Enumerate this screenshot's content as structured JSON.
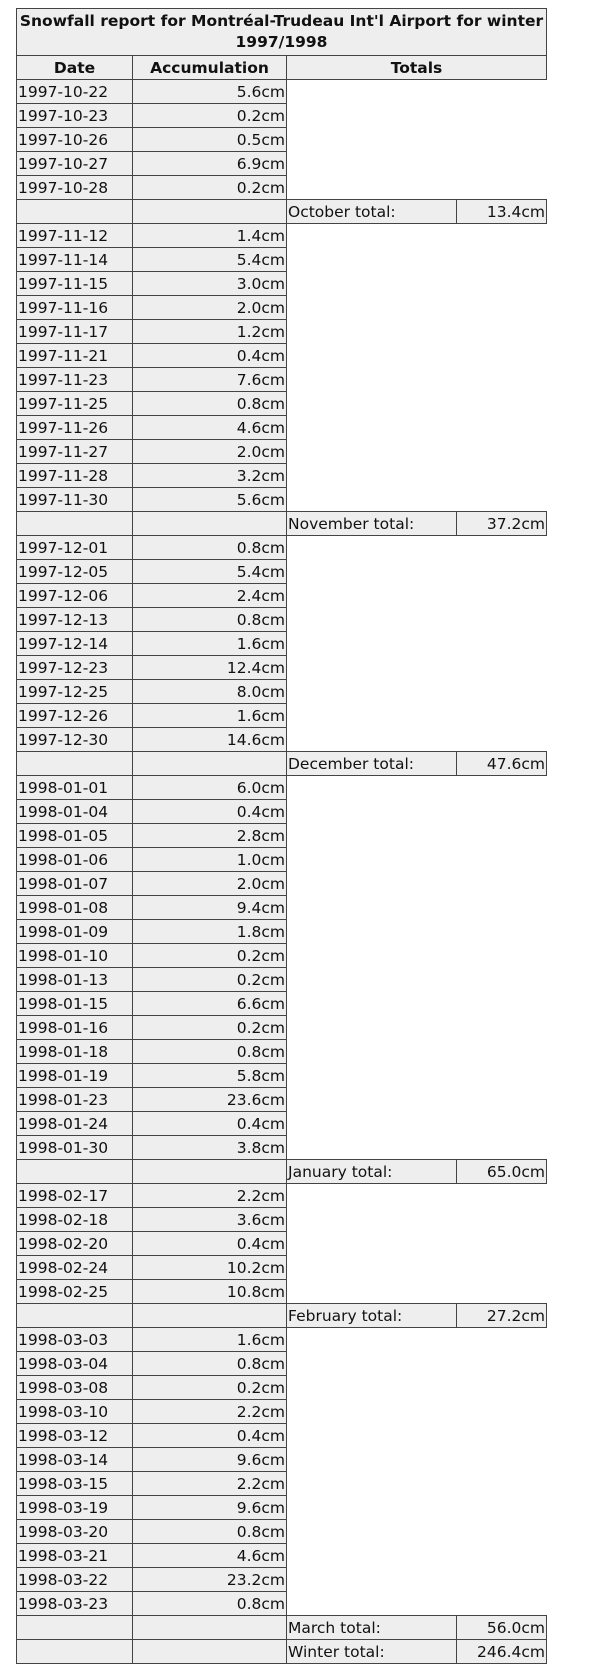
{
  "title": "Snowfall report for Montréal-Trudeau Int'l Airport for winter 1997/1998",
  "headers": {
    "date": "Date",
    "accumulation": "Accumulation",
    "totals": "Totals"
  },
  "months": [
    {
      "rows": [
        [
          "1997-10-22",
          "5.6cm"
        ],
        [
          "1997-10-23",
          "0.2cm"
        ],
        [
          "1997-10-26",
          "0.5cm"
        ],
        [
          "1997-10-27",
          "6.9cm"
        ],
        [
          "1997-10-28",
          "0.2cm"
        ]
      ],
      "total_label": "October total:",
      "total_value": "13.4cm"
    },
    {
      "rows": [
        [
          "1997-11-12",
          "1.4cm"
        ],
        [
          "1997-11-14",
          "5.4cm"
        ],
        [
          "1997-11-15",
          "3.0cm"
        ],
        [
          "1997-11-16",
          "2.0cm"
        ],
        [
          "1997-11-17",
          "1.2cm"
        ],
        [
          "1997-11-21",
          "0.4cm"
        ],
        [
          "1997-11-23",
          "7.6cm"
        ],
        [
          "1997-11-25",
          "0.8cm"
        ],
        [
          "1997-11-26",
          "4.6cm"
        ],
        [
          "1997-11-27",
          "2.0cm"
        ],
        [
          "1997-11-28",
          "3.2cm"
        ],
        [
          "1997-11-30",
          "5.6cm"
        ]
      ],
      "total_label": "November total:",
      "total_value": "37.2cm"
    },
    {
      "rows": [
        [
          "1997-12-01",
          "0.8cm"
        ],
        [
          "1997-12-05",
          "5.4cm"
        ],
        [
          "1997-12-06",
          "2.4cm"
        ],
        [
          "1997-12-13",
          "0.8cm"
        ],
        [
          "1997-12-14",
          "1.6cm"
        ],
        [
          "1997-12-23",
          "12.4cm"
        ],
        [
          "1997-12-25",
          "8.0cm"
        ],
        [
          "1997-12-26",
          "1.6cm"
        ],
        [
          "1997-12-30",
          "14.6cm"
        ]
      ],
      "total_label": "December total:",
      "total_value": "47.6cm"
    },
    {
      "rows": [
        [
          "1998-01-01",
          "6.0cm"
        ],
        [
          "1998-01-04",
          "0.4cm"
        ],
        [
          "1998-01-05",
          "2.8cm"
        ],
        [
          "1998-01-06",
          "1.0cm"
        ],
        [
          "1998-01-07",
          "2.0cm"
        ],
        [
          "1998-01-08",
          "9.4cm"
        ],
        [
          "1998-01-09",
          "1.8cm"
        ],
        [
          "1998-01-10",
          "0.2cm"
        ],
        [
          "1998-01-13",
          "0.2cm"
        ],
        [
          "1998-01-15",
          "6.6cm"
        ],
        [
          "1998-01-16",
          "0.2cm"
        ],
        [
          "1998-01-18",
          "0.8cm"
        ],
        [
          "1998-01-19",
          "5.8cm"
        ],
        [
          "1998-01-23",
          "23.6cm"
        ],
        [
          "1998-01-24",
          "0.4cm"
        ],
        [
          "1998-01-30",
          "3.8cm"
        ]
      ],
      "total_label": "January total:",
      "total_value": "65.0cm"
    },
    {
      "rows": [
        [
          "1998-02-17",
          "2.2cm"
        ],
        [
          "1998-02-18",
          "3.6cm"
        ],
        [
          "1998-02-20",
          "0.4cm"
        ],
        [
          "1998-02-24",
          "10.2cm"
        ],
        [
          "1998-02-25",
          "10.8cm"
        ]
      ],
      "total_label": "February total:",
      "total_value": "27.2cm"
    },
    {
      "rows": [
        [
          "1998-03-03",
          "1.6cm"
        ],
        [
          "1998-03-04",
          "0.8cm"
        ],
        [
          "1998-03-08",
          "0.2cm"
        ],
        [
          "1998-03-10",
          "2.2cm"
        ],
        [
          "1998-03-12",
          "0.4cm"
        ],
        [
          "1998-03-14",
          "9.6cm"
        ],
        [
          "1998-03-15",
          "2.2cm"
        ],
        [
          "1998-03-19",
          "9.6cm"
        ],
        [
          "1998-03-20",
          "0.8cm"
        ],
        [
          "1998-03-21",
          "4.6cm"
        ],
        [
          "1998-03-22",
          "23.2cm"
        ],
        [
          "1998-03-23",
          "0.8cm"
        ]
      ],
      "total_label": "March total:",
      "total_value": "56.0cm"
    }
  ],
  "grand_total": {
    "label": "Winter total:",
    "value": "246.4cm"
  }
}
